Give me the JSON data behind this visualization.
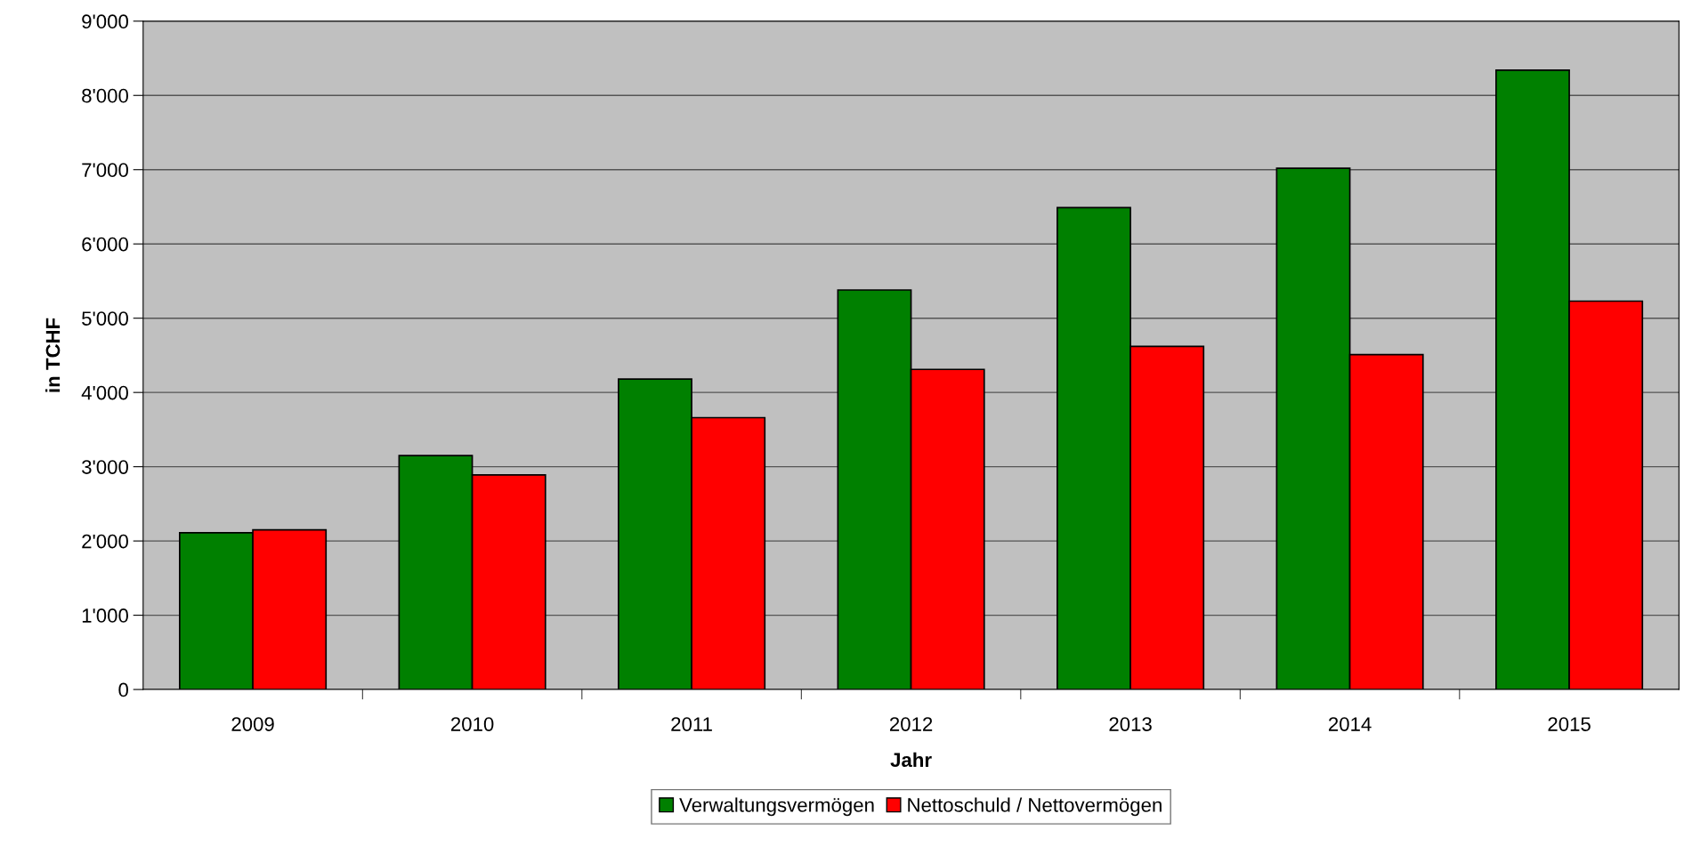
{
  "chart_data": {
    "type": "bar",
    "xlabel": "Jahr",
    "ylabel": "in TCHF",
    "categories": [
      "2009",
      "2010",
      "2011",
      "2012",
      "2013",
      "2014",
      "2015"
    ],
    "series": [
      {
        "name": "Verwaltungsvermögen",
        "color": "#008000",
        "values": [
          2110,
          3150,
          4180,
          5380,
          6490,
          7020,
          8340
        ]
      },
      {
        "name": "Nettoschuld / Nettovermögen",
        "color": "#ff0000",
        "values": [
          2150,
          2890,
          3660,
          4310,
          4620,
          4510,
          5230
        ]
      }
    ],
    "ylim": [
      0,
      9000
    ],
    "yticks": [
      0,
      {
        "value": 1000,
        "label": "1'000"
      },
      {
        "value": 2000,
        "label": "2'000"
      },
      {
        "value": 3000,
        "label": "3'000"
      },
      {
        "value": 4000,
        "label": "4'000"
      },
      {
        "value": 5000,
        "label": "5'000"
      },
      {
        "value": 6000,
        "label": "6'000"
      },
      {
        "value": 7000,
        "label": "7'000"
      },
      {
        "value": 8000,
        "label": "8'000"
      },
      {
        "value": 9000,
        "label": "9'000"
      }
    ],
    "grid": "y",
    "legend": "bottom"
  }
}
